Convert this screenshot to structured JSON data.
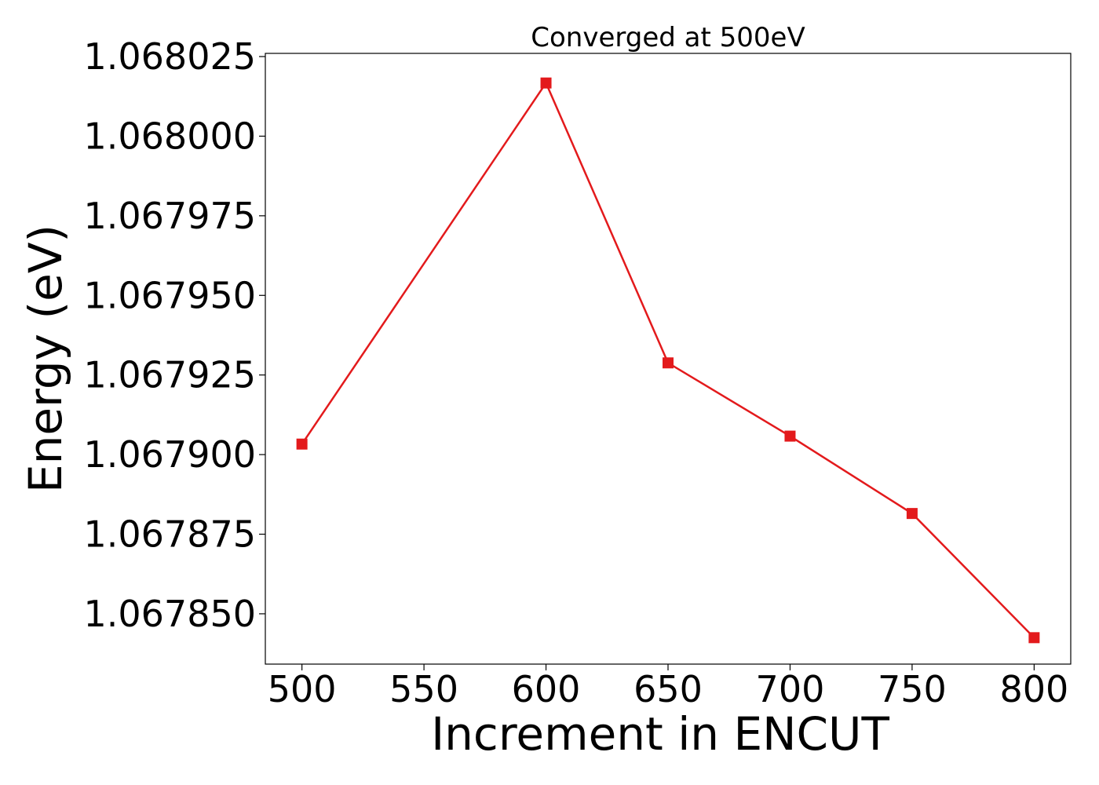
{
  "chart_data": {
    "type": "line",
    "title": "Converged at 500eV",
    "xlabel": "Increment in ENCUT",
    "ylabel": "Energy (eV)",
    "x": [
      500,
      600,
      650,
      700,
      750,
      800
    ],
    "series": [
      {
        "values": [
          1.0679033,
          1.0680167,
          1.0679288,
          1.0679058,
          1.0678815,
          1.0678425
        ],
        "color": "#e31a1c",
        "marker": "square"
      }
    ],
    "xticks": [
      "500",
      "550",
      "600",
      "650",
      "700",
      "750",
      "800"
    ],
    "yticks": [
      "1.067850",
      "1.067875",
      "1.067900",
      "1.067925",
      "1.067950",
      "1.067975",
      "1.068000",
      "1.068025"
    ],
    "xlim": [
      485,
      815
    ],
    "ylim": [
      1.0678342,
      1.068026
    ],
    "grid": false
  }
}
